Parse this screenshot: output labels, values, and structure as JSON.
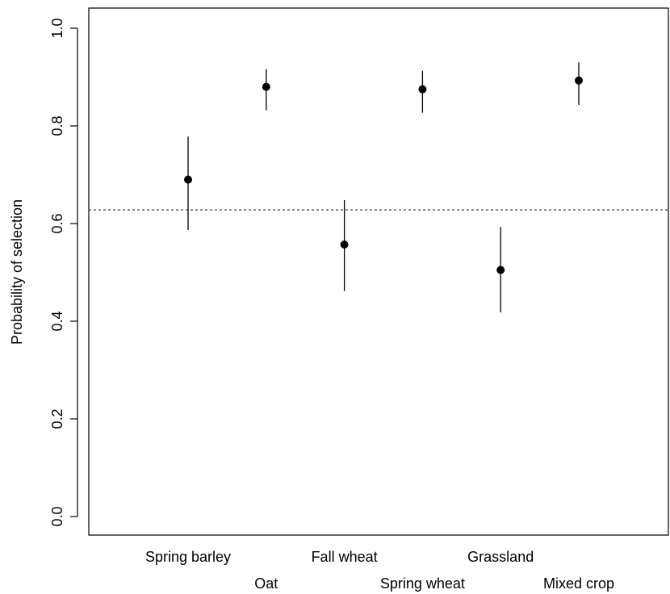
{
  "chart_data": {
    "type": "scatter",
    "title": "",
    "xlabel": "",
    "ylabel": "Probability of selection",
    "ylim": [
      0,
      1.0
    ],
    "yticks": [
      0.0,
      0.2,
      0.4,
      0.6,
      0.8,
      1.0
    ],
    "ytick_labels": [
      "0.0",
      "0.2",
      "0.4",
      "0.6",
      "0.8",
      "1.0"
    ],
    "grid": false,
    "legend": "none",
    "reference_line": {
      "y": 0.628,
      "style": "dotted"
    },
    "categories": [
      "Spring barley",
      "Oat",
      "Fall wheat",
      "Spring wheat",
      "Grassland",
      "Mixed crop"
    ],
    "values": [
      0.69,
      0.88,
      0.557,
      0.875,
      0.505,
      0.893
    ],
    "error_lower": [
      0.587,
      0.832,
      0.462,
      0.827,
      0.418,
      0.843
    ],
    "error_upper": [
      0.778,
      0.916,
      0.648,
      0.913,
      0.593,
      0.93
    ],
    "colors": {
      "points": "#000000",
      "lines": "#000000",
      "reference": "#555555"
    }
  }
}
